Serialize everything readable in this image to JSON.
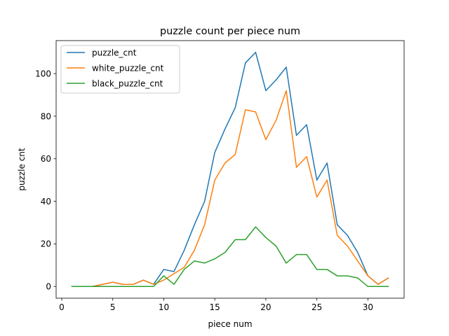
{
  "chart_data": {
    "type": "line",
    "title": "puzzle count per piece num",
    "xlabel": "piece num",
    "ylabel": "puzzle cnt",
    "xlim": [
      -0.55,
      33.55
    ],
    "ylim": [
      -5.5,
      115.5
    ],
    "xticks": [
      0,
      5,
      10,
      15,
      20,
      25,
      30
    ],
    "yticks": [
      0,
      20,
      40,
      60,
      80,
      100
    ],
    "grid": false,
    "legend_position": "top-left",
    "x": [
      1,
      2,
      3,
      4,
      5,
      6,
      7,
      8,
      9,
      10,
      11,
      12,
      13,
      14,
      15,
      16,
      17,
      18,
      19,
      20,
      21,
      22,
      23,
      24,
      25,
      26,
      27,
      28,
      29,
      30,
      31,
      32
    ],
    "series": [
      {
        "name": "puzzle_cnt",
        "color": "#1f77b4",
        "values": [
          0,
          0,
          0,
          1,
          2,
          1,
          1,
          3,
          1,
          8,
          7,
          17,
          29,
          40,
          63,
          74,
          84,
          105,
          110,
          92,
          97,
          103,
          71,
          76,
          50,
          58,
          29,
          24,
          16,
          5,
          1,
          4
        ]
      },
      {
        "name": "white_puzzle_cnt",
        "color": "#ff7f0e",
        "values": [
          0,
          0,
          0,
          1,
          2,
          1,
          1,
          3,
          1,
          3,
          6,
          9,
          17,
          29,
          50,
          58,
          62,
          83,
          82,
          69,
          78,
          92,
          56,
          61,
          42,
          50,
          24,
          19,
          12,
          5,
          1,
          4
        ]
      },
      {
        "name": "black_puzzle_cnt",
        "color": "#2ca02c",
        "values": [
          0,
          0,
          0,
          0,
          0,
          0,
          0,
          0,
          0,
          5,
          1,
          8,
          12,
          11,
          13,
          16,
          22,
          22,
          28,
          23,
          19,
          11,
          15,
          15,
          8,
          8,
          5,
          5,
          4,
          0,
          0,
          0
        ]
      }
    ]
  }
}
